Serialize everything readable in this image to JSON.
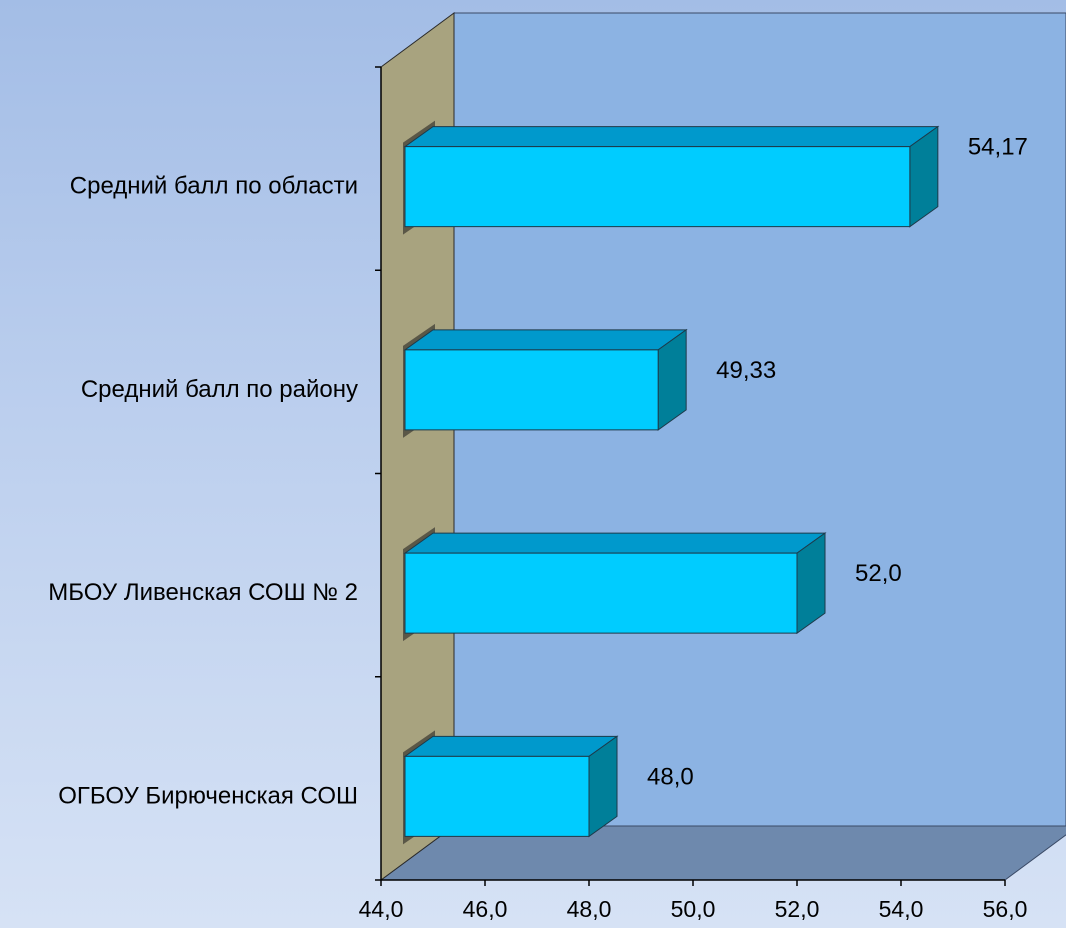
{
  "chart_data": {
    "type": "bar",
    "orientation": "horizontal",
    "style": "3d",
    "title": "",
    "xlabel": "",
    "ylabel": "",
    "xlim": [
      44.0,
      56.0
    ],
    "grid": false,
    "legend": "none",
    "x_ticks": [
      "44,0",
      "46,0",
      "48,0",
      "50,0",
      "52,0",
      "54,0",
      "56,0"
    ],
    "x_tick_values": [
      44,
      46,
      48,
      50,
      52,
      54,
      56
    ],
    "categories": [
      "Средний балл по области",
      "Средний балл по району",
      "МБОУ Ливенская СОШ № 2",
      "ОГБОУ Бирюченская СОШ"
    ],
    "values": [
      54.17,
      49.33,
      52.0,
      48.0
    ],
    "data_labels": [
      "54,17",
      "49,33",
      "52,0",
      "48,0"
    ],
    "colors": {
      "bar_front": "#00ccff",
      "bar_top": "#0099cc",
      "bar_side": "#007f99",
      "back_wall": "#8cb3e3",
      "floor": "#6e89ad",
      "side_wall": "#a8a37f"
    }
  }
}
